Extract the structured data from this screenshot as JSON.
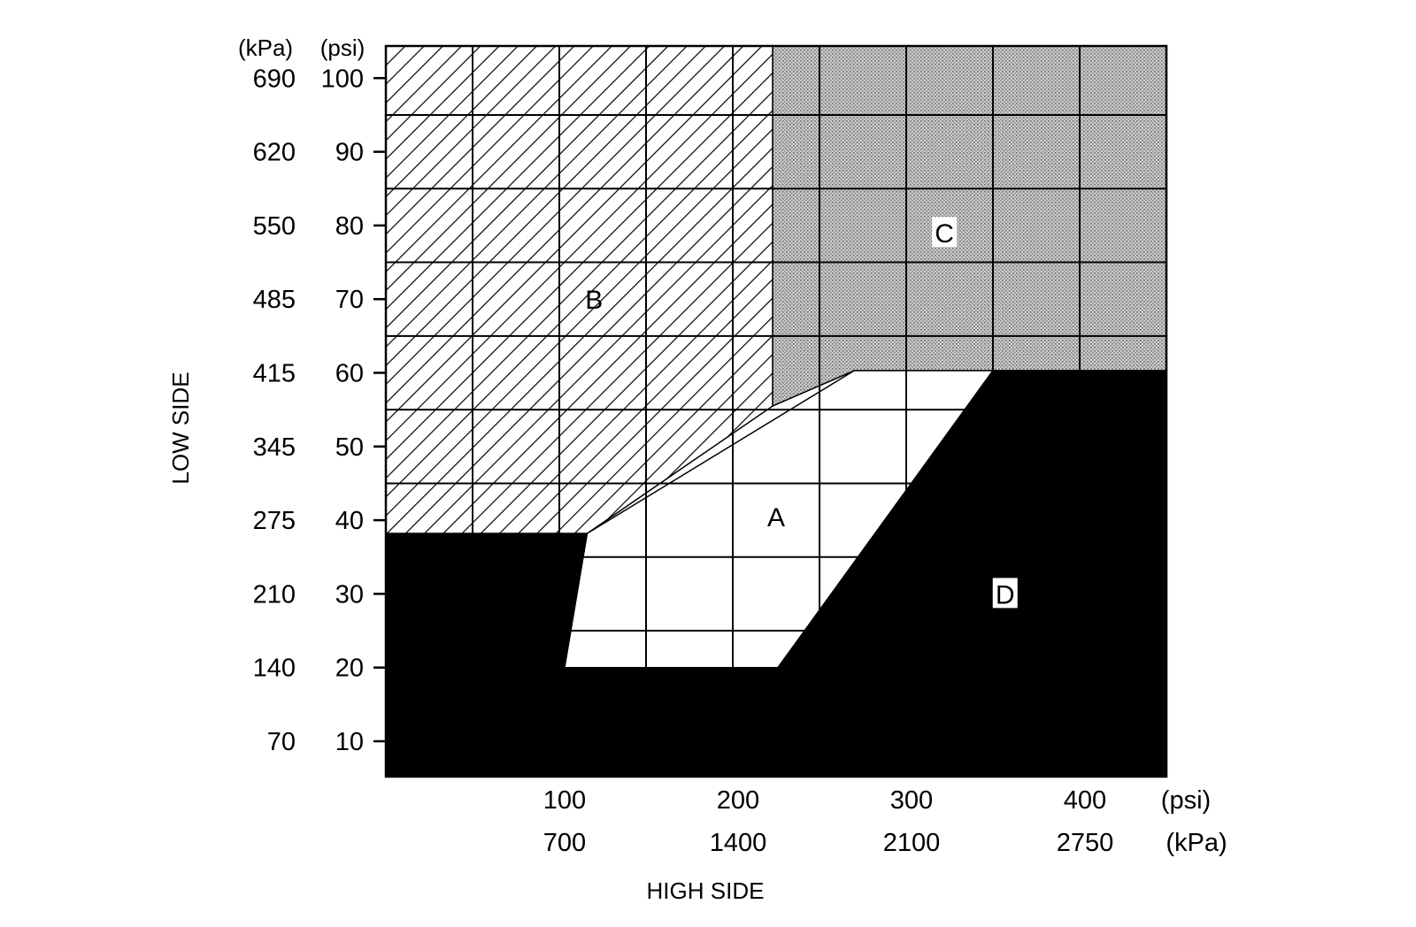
{
  "chart_data": {
    "type": "area",
    "x_axis": {
      "title": "HIGH SIDE",
      "range": [
        0,
        450
      ],
      "unit_labels": [
        "(psi)",
        "(kPa)"
      ],
      "ticks": [
        {
          "psi": 100,
          "kpa": "700"
        },
        {
          "psi": 200,
          "kpa": "1400"
        },
        {
          "psi": 300,
          "kpa": "2100"
        },
        {
          "psi": 400,
          "kpa": "2750"
        }
      ]
    },
    "y_axis": {
      "title": "LOW SIDE",
      "range": [
        5,
        105
      ],
      "unit_labels": [
        "(kPa)",
        "(psi)"
      ],
      "ticks": [
        {
          "psi": 100,
          "kpa": "690"
        },
        {
          "psi": 90,
          "kpa": "620"
        },
        {
          "psi": 80,
          "kpa": "550"
        },
        {
          "psi": 70,
          "kpa": "485"
        },
        {
          "psi": 60,
          "kpa": "415"
        },
        {
          "psi": 50,
          "kpa": "345"
        },
        {
          "psi": 40,
          "kpa": "275"
        },
        {
          "psi": 30,
          "kpa": "210"
        },
        {
          "psi": 20,
          "kpa": "140"
        },
        {
          "psi": 10,
          "kpa": "70"
        }
      ]
    },
    "grid": true,
    "regions": [
      {
        "label": "B",
        "fill": "hatched",
        "label_at": [
          120,
          70
        ],
        "polygon": [
          [
            0,
            105
          ],
          [
            223,
            105
          ],
          [
            223,
            55.5
          ],
          [
            116,
            38.2
          ],
          [
            0,
            38.2
          ]
        ]
      },
      {
        "label": "C",
        "fill": "stippled",
        "label_at": [
          322,
          79
        ],
        "polygon": [
          [
            223,
            105
          ],
          [
            450,
            105
          ],
          [
            450,
            60.3
          ],
          [
            270,
            60.3
          ],
          [
            223,
            55.5
          ]
        ]
      },
      {
        "label": "A",
        "fill": "white",
        "label_at": [
          225,
          40.5
        ],
        "polygon": [
          [
            116,
            38.2
          ],
          [
            270,
            60.3
          ],
          [
            350,
            60.3
          ],
          [
            226,
            20
          ],
          [
            103,
            20
          ]
        ]
      },
      {
        "label": "D",
        "fill": "black",
        "label_at": [
          357,
          30
        ],
        "polygon": [
          [
            0,
            38.2
          ],
          [
            116,
            38.2
          ],
          [
            103,
            20
          ],
          [
            226,
            20
          ],
          [
            350,
            60.3
          ],
          [
            450,
            60.3
          ],
          [
            450,
            5
          ],
          [
            0,
            5
          ]
        ]
      }
    ]
  }
}
